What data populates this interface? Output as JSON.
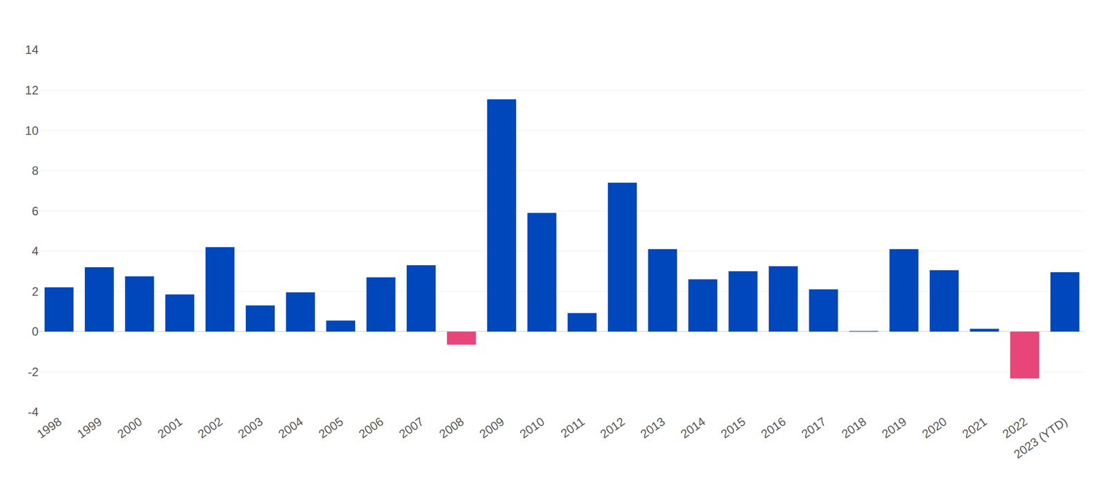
{
  "chart_data": {
    "type": "bar",
    "categories": [
      "1998",
      "1999",
      "2000",
      "2001",
      "2002",
      "2003",
      "2004",
      "2005",
      "2006",
      "2007",
      "2008",
      "2009",
      "2010",
      "2011",
      "2012",
      "2013",
      "2014",
      "2015",
      "2016",
      "2017",
      "2018",
      "2019",
      "2020",
      "2021",
      "2022",
      "2023 (YTD)"
    ],
    "values": [
      2.2,
      3.2,
      2.75,
      1.85,
      4.2,
      1.3,
      1.95,
      0.55,
      2.7,
      3.3,
      -0.65,
      11.55,
      5.9,
      0.92,
      7.4,
      4.1,
      2.6,
      3.0,
      3.25,
      2.1,
      0.03,
      4.1,
      3.05,
      0.14,
      -2.33,
      2.95
    ],
    "colors": [
      "#0047bb",
      "#0047bb",
      "#0047bb",
      "#0047bb",
      "#0047bb",
      "#0047bb",
      "#0047bb",
      "#0047bb",
      "#0047bb",
      "#0047bb",
      "#e8457a",
      "#0047bb",
      "#0047bb",
      "#0047bb",
      "#0047bb",
      "#0047bb",
      "#0047bb",
      "#0047bb",
      "#0047bb",
      "#0047bb",
      "#0047bb",
      "#0047bb",
      "#0047bb",
      "#0047bb",
      "#e8457a",
      "#0047bb"
    ],
    "ylim": [
      -4,
      14
    ],
    "yticks": [
      -4,
      -2,
      0,
      2,
      4,
      6,
      8,
      10,
      12,
      14
    ],
    "grid": true
  }
}
